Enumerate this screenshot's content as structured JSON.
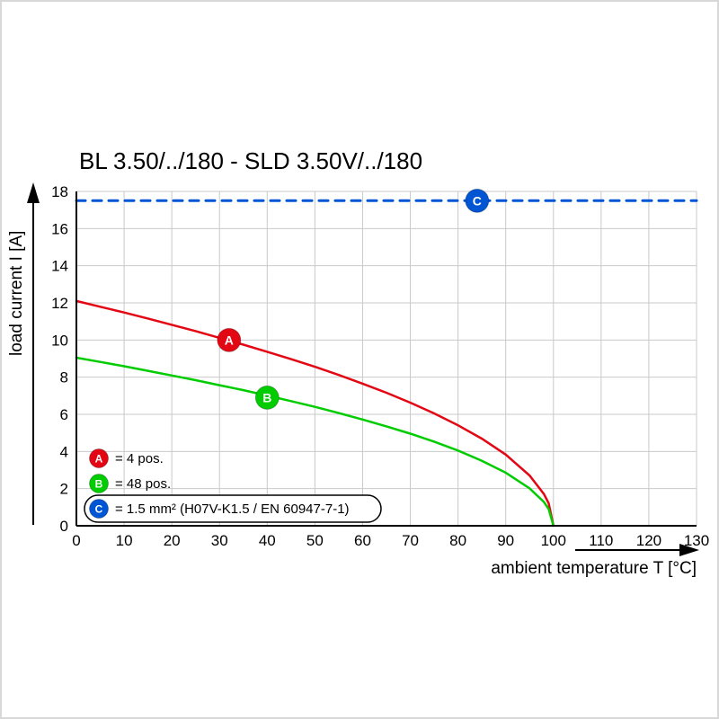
{
  "chart_data": {
    "type": "line",
    "title": "BL 3.50/../180 - SLD 3.50V/../180",
    "xlabel": "ambient temperature T [°C]",
    "ylabel": "load current I [A]",
    "xlim": [
      0,
      130
    ],
    "ylim": [
      0,
      18
    ],
    "x_ticks": [
      0,
      10,
      20,
      30,
      40,
      50,
      60,
      70,
      80,
      90,
      100,
      110,
      120,
      130
    ],
    "y_ticks": [
      0,
      2,
      4,
      6,
      8,
      10,
      12,
      14,
      16,
      18
    ],
    "grid": true,
    "legend_position": "bottom-left-inside",
    "series": [
      {
        "name": "A",
        "label": "= 4 pos.",
        "color": "#e30613",
        "style": "solid",
        "marker": {
          "x": 32,
          "y": 10
        },
        "points": [
          [
            0,
            12.1
          ],
          [
            5,
            11.79
          ],
          [
            10,
            11.48
          ],
          [
            15,
            11.16
          ],
          [
            20,
            10.82
          ],
          [
            25,
            10.48
          ],
          [
            30,
            10.12
          ],
          [
            35,
            9.75
          ],
          [
            40,
            9.37
          ],
          [
            45,
            8.97
          ],
          [
            50,
            8.56
          ],
          [
            55,
            8.12
          ],
          [
            60,
            7.65
          ],
          [
            65,
            7.16
          ],
          [
            70,
            6.63
          ],
          [
            75,
            6.05
          ],
          [
            80,
            5.41
          ],
          [
            85,
            4.69
          ],
          [
            90,
            3.83
          ],
          [
            95,
            2.71
          ],
          [
            98,
            1.71
          ],
          [
            99,
            1.21
          ],
          [
            100,
            0
          ]
        ]
      },
      {
        "name": "B",
        "label": "= 48 pos.",
        "color": "#00cc00",
        "style": "solid",
        "marker": {
          "x": 40,
          "y": 6.9
        },
        "points": [
          [
            0,
            9.05
          ],
          [
            5,
            8.82
          ],
          [
            10,
            8.59
          ],
          [
            15,
            8.34
          ],
          [
            20,
            8.09
          ],
          [
            25,
            7.84
          ],
          [
            30,
            7.57
          ],
          [
            35,
            7.3
          ],
          [
            40,
            7.01
          ],
          [
            45,
            6.71
          ],
          [
            50,
            6.4
          ],
          [
            55,
            6.07
          ],
          [
            60,
            5.72
          ],
          [
            65,
            5.35
          ],
          [
            70,
            4.96
          ],
          [
            75,
            4.53
          ],
          [
            80,
            4.05
          ],
          [
            85,
            3.5
          ],
          [
            90,
            2.86
          ],
          [
            95,
            2.02
          ],
          [
            98,
            1.28
          ],
          [
            99,
            0.9
          ],
          [
            100,
            0
          ]
        ]
      },
      {
        "name": "C",
        "label": "= 1.5 mm² (H07V-K1.5 / EN 60947-7-1)",
        "color": "#0055d4",
        "style": "dashed",
        "boxed_legend": true,
        "marker": {
          "x": 84,
          "y": 17.5
        },
        "points": [
          [
            0,
            17.5
          ],
          [
            130,
            17.5
          ]
        ]
      }
    ]
  }
}
